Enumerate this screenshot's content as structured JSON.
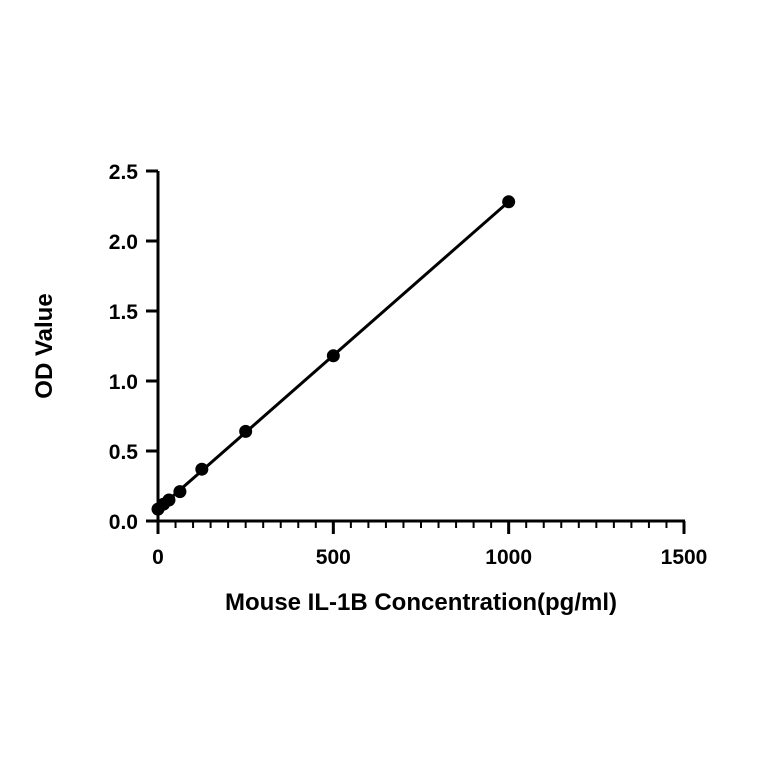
{
  "chart_data": {
    "type": "scatter",
    "title": "",
    "xlabel": "Mouse IL-1B Concentration(pg/ml)",
    "ylabel": "OD Value",
    "xlim": [
      0,
      1500
    ],
    "ylim": [
      0,
      2.5
    ],
    "x_ticks": [
      "0",
      "500",
      "1000",
      "1500"
    ],
    "y_ticks": [
      "0.0",
      "0.5",
      "1.0",
      "1.5",
      "2.0",
      "2.5"
    ],
    "grid": false,
    "legend": "none",
    "series": [
      {
        "x": [
          0,
          15.6,
          31.25,
          62.5,
          125,
          250,
          500,
          1000
        ],
        "y": [
          0.085,
          0.12,
          0.15,
          0.21,
          0.37,
          0.64,
          1.18,
          2.28
        ],
        "color": "#000000",
        "fit_line": true
      }
    ]
  }
}
